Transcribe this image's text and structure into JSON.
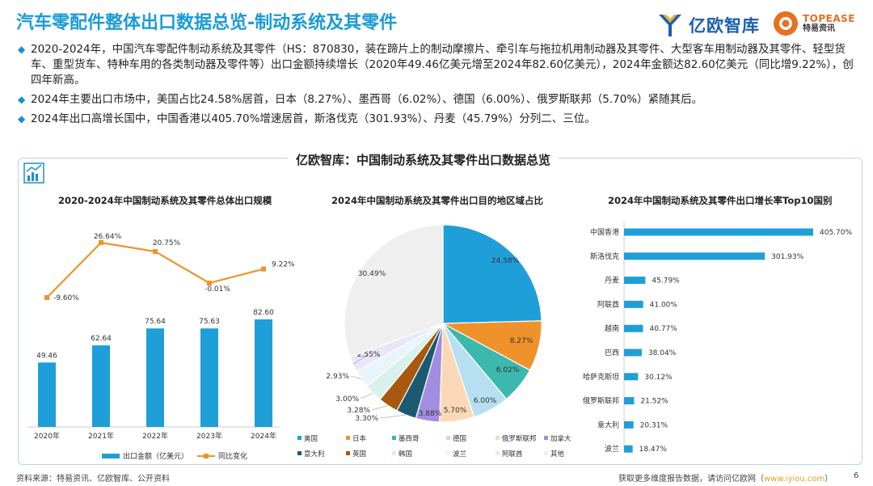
{
  "header": {
    "title": "汽车零配件整体出口数据总览-制动系统及其零件",
    "logo_iyiou": "亿欧智库",
    "logo_topease": "TOPEASE",
    "logo_topease_sub": "特易资讯"
  },
  "bullets": [
    "2020-2024年，中国汽车零配件制动系统及其零件（HS：870830，装在蹄片上的制动摩擦片、牵引车与拖拉机用制动器及其零件、大型客车用制动器及其零件、轻型货车、重型货车、特种车用的各类制动器及零件等）出口金额持续增长（2020年49.46亿美元增至2024年82.60亿美元），2024年金额达82.60亿美元（同比增9.22%），创四年新高。",
    "2024年主要出口市场中，美国占比24.58%居首，日本（8.27%）、墨西哥（6.02%）、德国（6.00%）、俄罗斯联邦（5.70%）紧随其后。",
    "2024年出口高增长国中，中国香港以405.70%增速居首，斯洛伐克（301.93%）、丹麦（45.79%）分列二、三位。"
  ],
  "panel_title": "亿欧智库：中国制动系统及其零件出口数据总览",
  "footer": {
    "source": "资料来源：特易资讯、亿欧智库、公开资料",
    "more": "获取更多维度报告数据，请访问亿欧网（",
    "link": "www.iyiou.com",
    "close": "）",
    "page": "6"
  },
  "colors": {
    "title": "#1a9bd7",
    "bar": "#1f9fd8",
    "line": "#f0922b"
  },
  "chart_data": [
    {
      "type": "bar",
      "title": "2020-2024年中国制动系统及其零件总体出口规模",
      "categories": [
        "2020年",
        "2021年",
        "2022年",
        "2023年",
        "2024年"
      ],
      "series": [
        {
          "name": "出口金额（亿美元）",
          "type": "bar",
          "values": [
            49.46,
            62.64,
            75.64,
            75.63,
            82.6
          ],
          "labels": [
            "49.46",
            "62.64",
            "75.64",
            "75.63",
            "82.60"
          ]
        },
        {
          "name": "同比变化",
          "type": "line",
          "values": [
            -9.6,
            26.64,
            20.75,
            -0.01,
            9.22
          ],
          "labels": [
            "-9.60%",
            "26.64%",
            "20.75%",
            "-0.01%",
            "9.22%"
          ]
        }
      ],
      "legend": "bottom"
    },
    {
      "type": "pie",
      "title": "2024年中国制动系统及其零件出口目的地区域占比",
      "slices": [
        {
          "name": "美国",
          "value": 24.58,
          "label": "24.58%",
          "color": "#1f9fd8"
        },
        {
          "name": "日本",
          "value": 8.27,
          "label": "8.27%",
          "color": "#f0922b"
        },
        {
          "name": "墨西哥",
          "value": 6.02,
          "label": "6.02%",
          "color": "#3cb8ad"
        },
        {
          "name": "德国",
          "value": 6.0,
          "label": "6.00%",
          "color": "#b6dff2"
        },
        {
          "name": "俄罗斯联邦",
          "value": 5.7,
          "label": "5.70%",
          "color": "#fbd9b8"
        },
        {
          "name": "加拿大",
          "value": 3.88,
          "label": "3.88%",
          "color": "#a38de0"
        },
        {
          "name": "意大利",
          "value": 3.3,
          "label": "3.30%",
          "color": "#1c5a72"
        },
        {
          "name": "英国",
          "value": 3.28,
          "label": "3.28%",
          "color": "#a8590f"
        },
        {
          "name": "韩国",
          "value": 3.0,
          "label": "3.00%",
          "color": "#d8f1ec"
        },
        {
          "name": "波兰",
          "value": 2.93,
          "label": "2.93%",
          "color": "#eaf4fb"
        },
        {
          "name": "阿联酋",
          "value": 2.55,
          "label": "2.55%",
          "color": "#e9e6f8"
        },
        {
          "name": "其他",
          "value": 30.49,
          "label": "30.49%",
          "color": "#efefef"
        }
      ],
      "legend": "bottom"
    },
    {
      "type": "bar",
      "orientation": "horizontal",
      "title": "2024年中国制动系统及其零件出口增长率Top10国别",
      "categories": [
        "中国香港",
        "斯洛伐克",
        "丹麦",
        "阿联酋",
        "越南",
        "巴西",
        "哈萨克斯坦",
        "俄罗斯联邦",
        "意大利",
        "波兰"
      ],
      "values": [
        405.7,
        301.93,
        45.79,
        41.0,
        40.77,
        38.04,
        30.12,
        21.52,
        20.31,
        18.47
      ],
      "labels": [
        "405.70%",
        "301.93%",
        "45.79%",
        "41.00%",
        "40.77%",
        "38.04%",
        "30.12%",
        "21.52%",
        "20.31%",
        "18.47%"
      ]
    }
  ]
}
